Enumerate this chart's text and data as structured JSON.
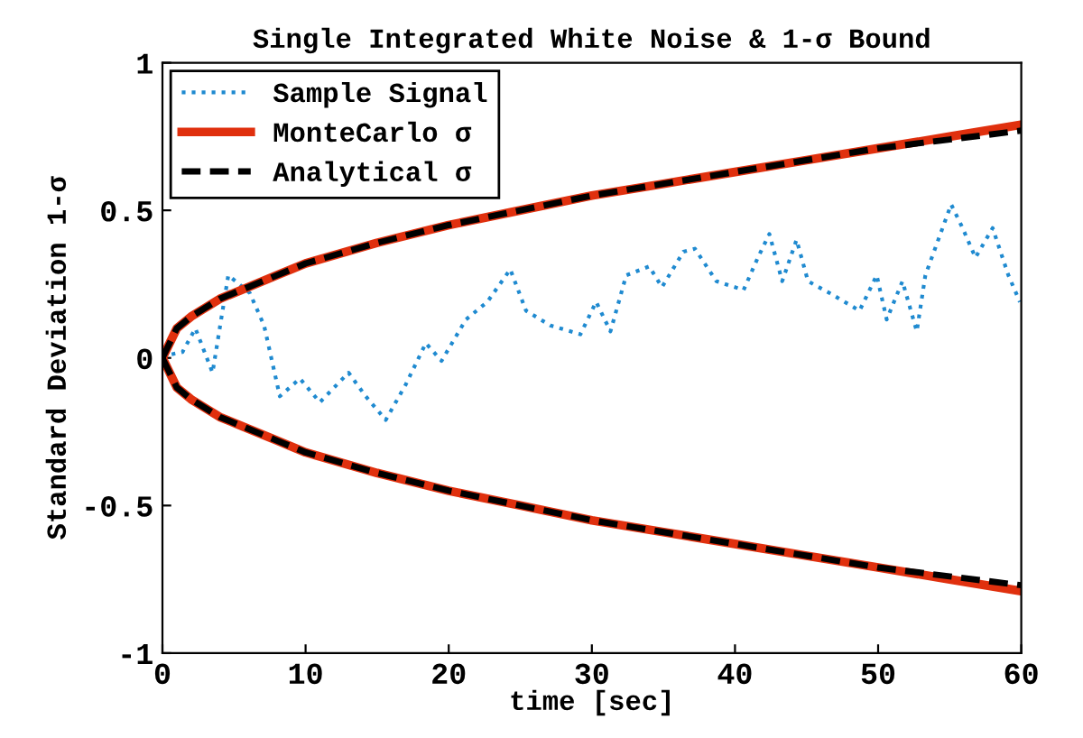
{
  "chart_data": {
    "type": "line",
    "title": "Single Integrated White Noise & 1-σ Bound",
    "xlabel": "time [sec]",
    "ylabel": "Standard Deviation 1-σ",
    "xlim": [
      0,
      60
    ],
    "xticks": [
      0,
      10,
      20,
      30,
      40,
      50,
      60
    ],
    "ylim": [
      -1,
      1
    ],
    "yticks": [
      -1,
      -0.5,
      0,
      0.5,
      1
    ],
    "grid": false,
    "legend": "top left",
    "series": [
      {
        "name": "Sample Signal",
        "color": "#1f8ad0",
        "line_style": "dotted",
        "x": [
          0,
          0.4,
          1.4,
          2.3,
          3.5,
          4.6,
          6.1,
          7.1,
          8.2,
          9.6,
          11.0,
          13.0,
          14.2,
          15.6,
          17.0,
          18.4,
          19.5,
          21.2,
          22.7,
          24.3,
          25.4,
          27.1,
          29.2,
          30.3,
          31.3,
          32.4,
          34.0,
          34.9,
          36.4,
          37.2,
          38.7,
          40.6,
          41.6,
          42.4,
          43.3,
          44.3,
          45.1,
          46.6,
          48.7,
          49.9,
          50.6,
          51.7,
          52.7,
          53.3,
          54.2,
          55.1,
          55.9,
          56.8,
          58.0,
          59.1,
          59.9
        ],
        "values": [
          0,
          0.01,
          0.02,
          0.1,
          -0.05,
          0.28,
          0.22,
          0.11,
          -0.13,
          -0.07,
          -0.15,
          -0.05,
          -0.13,
          -0.21,
          -0.09,
          0.05,
          -0.01,
          0.13,
          0.19,
          0.3,
          0.16,
          0.11,
          0.08,
          0.19,
          0.09,
          0.28,
          0.31,
          0.24,
          0.36,
          0.37,
          0.26,
          0.23,
          0.34,
          0.42,
          0.26,
          0.4,
          0.26,
          0.22,
          0.16,
          0.28,
          0.13,
          0.26,
          0.09,
          0.28,
          0.4,
          0.52,
          0.44,
          0.34,
          0.44,
          0.28,
          0.19
        ]
      },
      {
        "name": "MonteCarlo σ",
        "color": "#e0300e",
        "line_style": "solid",
        "x": [
          0,
          1,
          2,
          4,
          6,
          8,
          10,
          15,
          20,
          25,
          30,
          35,
          40,
          45,
          50,
          55,
          60
        ],
        "values": [
          0,
          0.1,
          0.14,
          0.2,
          0.24,
          0.28,
          0.32,
          0.39,
          0.45,
          0.5,
          0.55,
          0.59,
          0.63,
          0.67,
          0.71,
          0.75,
          0.79
        ]
      },
      {
        "color": "#e0300e",
        "line_style": "solid",
        "x": [
          0,
          1,
          2,
          4,
          6,
          8,
          10,
          15,
          20,
          25,
          30,
          35,
          40,
          45,
          50,
          55,
          60
        ],
        "values": [
          0,
          -0.1,
          -0.14,
          -0.2,
          -0.24,
          -0.28,
          -0.32,
          -0.39,
          -0.45,
          -0.5,
          -0.55,
          -0.59,
          -0.63,
          -0.67,
          -0.71,
          -0.75,
          -0.79
        ]
      },
      {
        "name": "Analytical σ",
        "color": "#000000",
        "line_style": "dashed",
        "x": [
          0,
          1,
          2,
          4,
          6,
          8,
          10,
          15,
          20,
          25,
          30,
          35,
          40,
          45,
          50,
          55,
          60
        ],
        "values": [
          0,
          0.1,
          0.14,
          0.2,
          0.24,
          0.28,
          0.32,
          0.39,
          0.45,
          0.5,
          0.55,
          0.59,
          0.63,
          0.67,
          0.71,
          0.74,
          0.77
        ]
      },
      {
        "color": "#000000",
        "line_style": "dashed",
        "x": [
          0,
          1,
          2,
          4,
          6,
          8,
          10,
          15,
          20,
          25,
          30,
          35,
          40,
          45,
          50,
          55,
          60
        ],
        "values": [
          0,
          -0.1,
          -0.14,
          -0.2,
          -0.24,
          -0.28,
          -0.32,
          -0.39,
          -0.45,
          -0.5,
          -0.55,
          -0.59,
          -0.63,
          -0.67,
          -0.71,
          -0.74,
          -0.77
        ]
      }
    ]
  }
}
